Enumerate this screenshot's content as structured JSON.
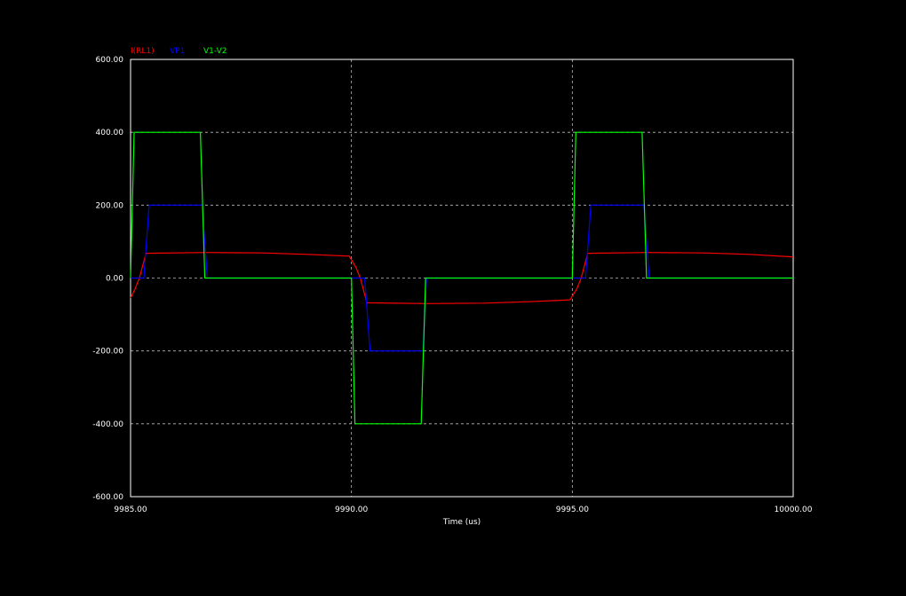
{
  "chart_data": {
    "type": "line",
    "title": "",
    "xlabel": "Time (us)",
    "ylabel": "",
    "xlim": [
      9985.0,
      10000.0
    ],
    "ylim": [
      -600.0,
      600.0
    ],
    "x_ticks": [
      9985.0,
      9990.0,
      9995.0,
      10000.0
    ],
    "x_tick_labels": [
      "9985.00",
      "9990.00",
      "9995.00",
      "10000.00"
    ],
    "y_ticks": [
      600.0,
      400.0,
      200.0,
      0.0,
      -200.0,
      -400.0,
      -600.0
    ],
    "y_tick_labels": [
      "600.00",
      "400.00",
      "200.00",
      "0.00",
      "-200.00",
      "-400.00",
      "-600.00"
    ],
    "grid": true,
    "legend_position": "top-left",
    "background": "#000000",
    "series": [
      {
        "name": "I(RL1)",
        "color": "#ff0000",
        "points": [
          [
            9985.0,
            -55
          ],
          [
            9985.1,
            -30
          ],
          [
            9985.2,
            0
          ],
          [
            9985.35,
            68
          ],
          [
            9986.7,
            70
          ],
          [
            9988.0,
            69
          ],
          [
            9989.0,
            65
          ],
          [
            9989.95,
            60
          ],
          [
            9990.1,
            30
          ],
          [
            9990.2,
            0
          ],
          [
            9990.35,
            -68
          ],
          [
            9991.7,
            -70
          ],
          [
            9993.0,
            -69
          ],
          [
            9994.0,
            -65
          ],
          [
            9994.95,
            -60
          ],
          [
            9995.1,
            -30
          ],
          [
            9995.2,
            0
          ],
          [
            9995.35,
            68
          ],
          [
            9996.7,
            70
          ],
          [
            9998.0,
            69
          ],
          [
            9999.0,
            65
          ],
          [
            10000.0,
            58
          ]
        ]
      },
      {
        "name": "VP1",
        "color": "#0000ff",
        "points": [
          [
            9985.0,
            0
          ],
          [
            9985.3,
            0
          ],
          [
            9985.42,
            200
          ],
          [
            9986.62,
            200
          ],
          [
            9986.74,
            0
          ],
          [
            9990.0,
            0
          ],
          [
            9990.3,
            0
          ],
          [
            9990.42,
            -200
          ],
          [
            9991.62,
            -200
          ],
          [
            9991.7,
            0
          ],
          [
            9995.0,
            0
          ],
          [
            9995.3,
            0
          ],
          [
            9995.42,
            200
          ],
          [
            9996.62,
            200
          ],
          [
            9996.74,
            0
          ],
          [
            10000.0,
            0
          ]
        ]
      },
      {
        "name": "V1-V2",
        "color": "#00ff00",
        "points": [
          [
            9985.0,
            0
          ],
          [
            9985.08,
            400
          ],
          [
            9986.58,
            400
          ],
          [
            9986.68,
            0
          ],
          [
            9990.0,
            0
          ],
          [
            9990.08,
            -400
          ],
          [
            9991.58,
            -400
          ],
          [
            9991.68,
            0
          ],
          [
            9995.0,
            0
          ],
          [
            9995.08,
            400
          ],
          [
            9996.58,
            400
          ],
          [
            9996.68,
            0
          ],
          [
            10000.0,
            0
          ]
        ]
      }
    ]
  }
}
